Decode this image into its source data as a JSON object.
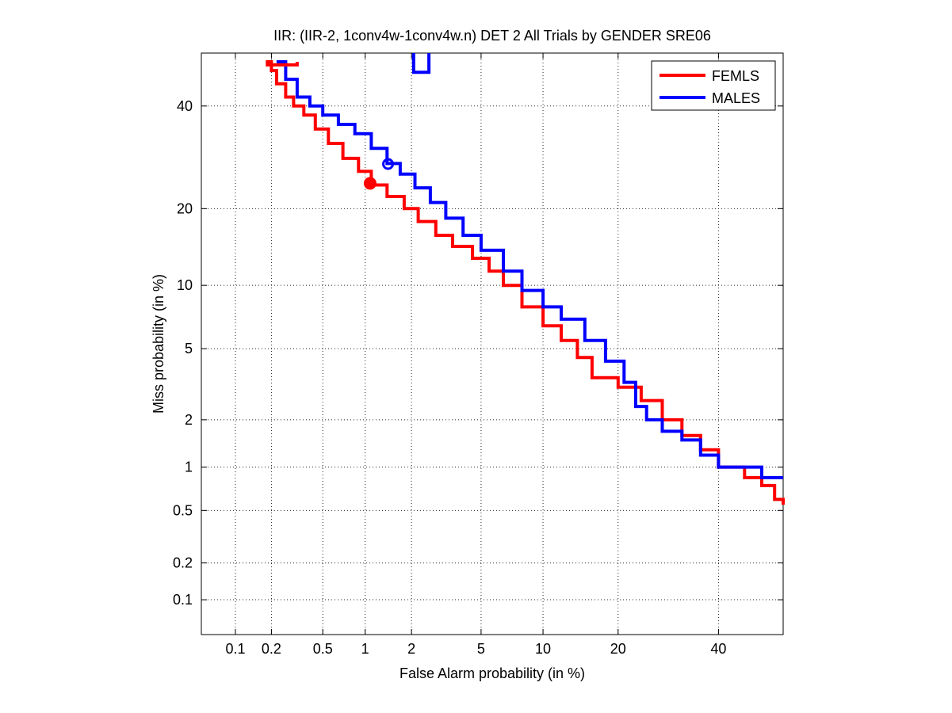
{
  "chart_data": {
    "type": "line",
    "title": "IIR: (IIR-2, 1conv4w-1conv4w.n) DET 2 All Trials by GENDER SRE06",
    "xlabel": "False Alarm probability (in %)",
    "ylabel": "Miss probability (in %)",
    "x_scale": "probit",
    "y_scale": "probit",
    "xlim": [
      0.05,
      55
    ],
    "ylim": [
      0.05,
      52
    ],
    "x_ticks": [
      0.1,
      0.2,
      0.5,
      1,
      2,
      5,
      10,
      20,
      40
    ],
    "x_tick_labels": [
      "0.1",
      "0.2",
      "0.5",
      "1",
      "2",
      "5",
      "10",
      "20",
      "40"
    ],
    "y_ticks": [
      0.1,
      0.2,
      0.5,
      1,
      2,
      5,
      10,
      20,
      40
    ],
    "y_tick_labels": [
      "0.1",
      "0.2",
      "0.5",
      "1",
      "2",
      "5",
      "10",
      "20",
      "40"
    ],
    "grid": true,
    "legend_position": "top-right",
    "series": [
      {
        "name": "FEMLS",
        "color": "#ff0000",
        "x": [
          0.18,
          0.2,
          0.22,
          0.26,
          0.3,
          0.36,
          0.44,
          0.55,
          0.7,
          0.9,
          1.1,
          1.4,
          1.8,
          2.2,
          2.8,
          3.5,
          4.5,
          5.5,
          6.5,
          8,
          10,
          12,
          14,
          16,
          20,
          24,
          28,
          32,
          36,
          40,
          46,
          50,
          53,
          55
        ],
        "y": [
          50,
          48,
          45,
          42,
          40,
          38,
          35,
          32,
          29,
          26.5,
          24,
          22,
          20,
          18,
          16,
          14.5,
          13,
          11.5,
          10,
          8,
          6.5,
          5.5,
          4.5,
          3.5,
          3.1,
          2.6,
          2.0,
          1.6,
          1.3,
          1.0,
          0.85,
          0.75,
          0.6,
          0.55
        ]
      },
      {
        "name": "MALES",
        "color": "#0000ff",
        "x": [
          0.22,
          0.26,
          0.32,
          0.4,
          0.5,
          0.65,
          0.85,
          1.1,
          1.4,
          1.7,
          2.1,
          2.6,
          3.2,
          4,
          5,
          6.5,
          8,
          10,
          12,
          15,
          18,
          21,
          23,
          25,
          28,
          32,
          36,
          40,
          45,
          50,
          55
        ],
        "y": [
          50,
          46,
          42,
          40,
          38,
          36,
          34,
          31,
          28,
          26,
          23.5,
          21,
          18.5,
          16,
          14,
          11.5,
          9.5,
          8,
          7,
          5.5,
          4.3,
          3.3,
          2.4,
          2.0,
          1.7,
          1.5,
          1.2,
          1.0,
          1.0,
          0.85,
          0.85
        ]
      }
    ],
    "markers": [
      {
        "series": "FEMLS",
        "x": 1.08,
        "y": 24.3,
        "style": "filled-circle",
        "color": "#ff0000"
      },
      {
        "series": "MALES",
        "x": 1.42,
        "y": 27.9,
        "style": "open-circle",
        "color": "#0000ff"
      }
    ],
    "extra_segments": [
      {
        "series": "FEMLS",
        "x": [
          0.18,
          0.32,
          0.32
        ],
        "y": [
          49.3,
          49.3,
          50
        ]
      },
      {
        "series": "MALES",
        "x": [
          2.06,
          2.06,
          2.55,
          2.55
        ],
        "y": [
          52,
          47.6,
          47.6,
          52
        ]
      }
    ]
  }
}
